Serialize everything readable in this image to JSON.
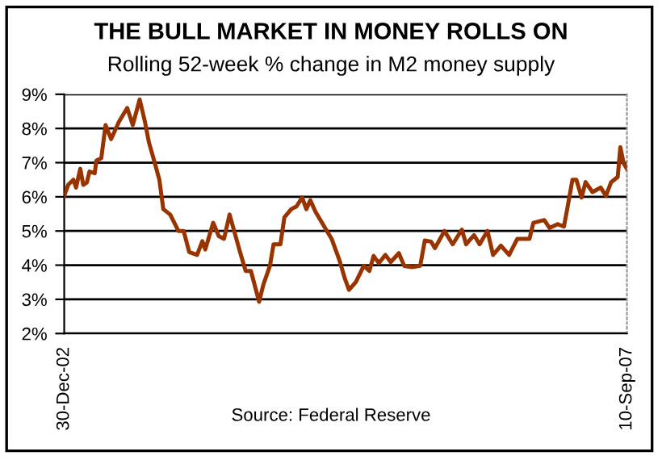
{
  "chart_data": {
    "type": "line",
    "title": "THE BULL MARKET IN MONEY ROLLS ON",
    "subtitle": "Rolling 52-week % change in M2 money supply",
    "annotations": [
      "Source: Federal Reserve"
    ],
    "x": [
      "2002-12-30",
      "2003-01-11",
      "2003-01-27",
      "2003-02-04",
      "2003-02-17",
      "2003-02-26",
      "2003-03-09",
      "2003-03-17",
      "2003-04-02",
      "2003-04-07",
      "2003-04-22",
      "2003-05-05",
      "2003-05-22",
      "2003-06-15",
      "2003-07-10",
      "2003-07-27",
      "2003-08-17",
      "2003-09-02",
      "2003-09-14",
      "2003-09-30",
      "2003-10-16",
      "2003-10-28",
      "2003-11-18",
      "2003-12-13",
      "2003-12-29",
      "2004-01-15",
      "2004-02-08",
      "2004-02-24",
      "2004-03-04",
      "2004-03-28",
      "2004-04-14",
      "2004-04-30",
      "2004-05-17",
      "2004-06-02",
      "2004-06-18",
      "2004-07-05",
      "2004-07-21",
      "2004-08-15",
      "2004-08-28",
      "2004-09-17",
      "2004-09-28",
      "2004-10-19",
      "2004-10-31",
      "2004-11-21",
      "2004-12-07",
      "2004-12-24",
      "2005-01-06",
      "2005-01-18",
      "2005-02-03",
      "2005-02-27",
      "2005-03-24",
      "2005-04-17",
      "2005-05-04",
      "2005-05-16",
      "2005-06-06",
      "2005-06-30",
      "2005-07-17",
      "2005-07-30",
      "2005-08-15",
      "2005-09-04",
      "2005-09-20",
      "2005-10-15",
      "2005-10-31",
      "2005-11-25",
      "2005-12-19",
      "2006-01-02",
      "2006-01-21",
      "2006-02-02",
      "2006-03-03",
      "2006-03-28",
      "2006-04-25",
      "2006-05-08",
      "2006-06-01",
      "2006-06-18",
      "2006-07-12",
      "2006-07-29",
      "2006-08-22",
      "2006-09-16",
      "2006-10-11",
      "2006-11-17",
      "2006-11-29",
      "2007-01-01",
      "2007-01-17",
      "2007-02-11",
      "2007-03-02",
      "2007-03-12",
      "2007-03-28",
      "2007-04-09",
      "2007-04-25",
      "2007-05-07",
      "2007-05-28",
      "2007-06-22",
      "2007-07-08",
      "2007-07-24",
      "2007-08-13",
      "2007-08-21",
      "2007-08-31",
      "2007-09-10"
    ],
    "series": [
      {
        "color": "#993300",
        "values": [
          6.03,
          6.35,
          6.5,
          6.27,
          6.82,
          6.35,
          6.42,
          6.74,
          6.69,
          7.06,
          7.13,
          8.1,
          7.69,
          8.2,
          8.6,
          8.1,
          8.85,
          8.2,
          7.6,
          7.06,
          6.5,
          5.64,
          5.48,
          5.0,
          5.0,
          4.38,
          4.3,
          4.7,
          4.46,
          5.24,
          4.85,
          4.77,
          5.48,
          4.93,
          4.38,
          3.83,
          3.83,
          2.93,
          3.43,
          3.98,
          4.61,
          4.61,
          5.4,
          5.64,
          5.72,
          5.98,
          5.64,
          5.9,
          5.56,
          5.17,
          4.77,
          4.14,
          3.59,
          3.28,
          3.51,
          3.98,
          3.83,
          4.27,
          4.06,
          4.3,
          4.09,
          4.35,
          3.98,
          3.94,
          3.98,
          4.72,
          4.69,
          4.5,
          5.0,
          4.61,
          5.04,
          4.61,
          4.88,
          4.61,
          5.0,
          4.3,
          4.57,
          4.3,
          4.77,
          4.77,
          5.24,
          5.32,
          5.09,
          5.2,
          5.13,
          5.64,
          6.5,
          6.5,
          5.98,
          6.43,
          6.14,
          6.27,
          6.03,
          6.43,
          6.58,
          7.45,
          6.98,
          6.82
        ]
      }
    ],
    "xlim": [
      "2002-12-30",
      "2007-09-10"
    ],
    "xticks": [
      {
        "value": "2002-12-30",
        "label": "30-Dec-02"
      },
      {
        "value": "2007-09-10",
        "label": "10-Sep-07"
      }
    ],
    "ylim": [
      2,
      9
    ],
    "yticks": [
      {
        "value": 2,
        "label": "2%"
      },
      {
        "value": 3,
        "label": "3%"
      },
      {
        "value": 4,
        "label": "4%"
      },
      {
        "value": 5,
        "label": "5%"
      },
      {
        "value": 6,
        "label": "6%"
      },
      {
        "value": 7,
        "label": "7%"
      },
      {
        "value": 8,
        "label": "8%"
      },
      {
        "value": 9,
        "label": "9%"
      }
    ],
    "grid": "y",
    "marker": "none",
    "line_style": "solid"
  }
}
